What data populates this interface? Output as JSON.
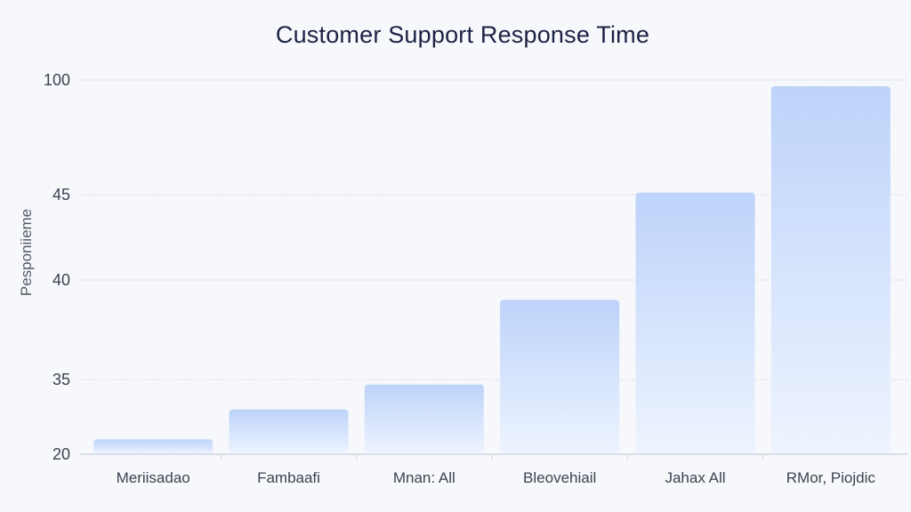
{
  "chart_data": {
    "type": "bar",
    "title": "Customer Support Response Time",
    "xlabel": "",
    "ylabel": "Pesponiieme",
    "categories": [
      "Meriisadao",
      "Fambaafi",
      "Mnan: All",
      "Bleovehiail",
      "Jahax All",
      "RMor, Piojdic"
    ],
    "values": [
      23,
      29,
      34,
      39,
      46,
      97
    ],
    "yticks": [
      20,
      35,
      40,
      45,
      100
    ],
    "grid": true,
    "legend": "none",
    "colors": {
      "bar_top": "#bdd3fa",
      "bar_bottom": "#eef4ff",
      "grid": "#dde1ea",
      "title": "#1c2244"
    }
  }
}
